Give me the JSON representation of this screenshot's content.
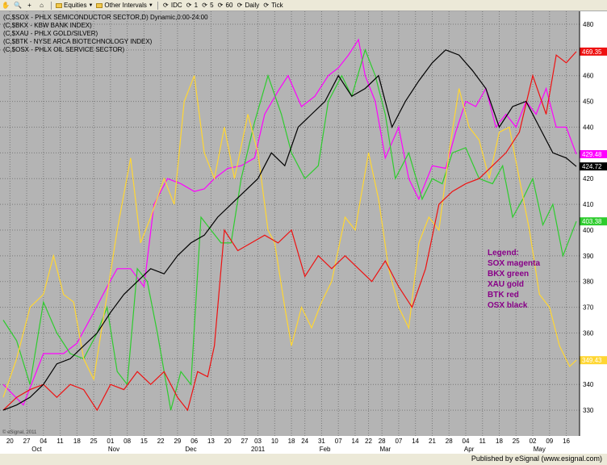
{
  "toolbar": {
    "items": [
      {
        "label": "",
        "icon": "hand-icon",
        "glyph": "✋"
      },
      {
        "label": "",
        "icon": "zoom-icon",
        "glyph": "🔍"
      },
      {
        "label": "",
        "icon": "crosshair-icon",
        "glyph": "+"
      },
      {
        "label": "",
        "icon": "home-icon",
        "glyph": "⌂"
      },
      {
        "label": "Equities",
        "icon": "folder-icon",
        "glyph": ""
      },
      {
        "label": "Other Intervals",
        "icon": "folder-icon",
        "glyph": ""
      },
      {
        "label": "IDC",
        "icon": "interval-icon",
        "glyph": "⟳"
      },
      {
        "label": "1",
        "icon": "interval-icon",
        "glyph": "⟳"
      },
      {
        "label": "5",
        "icon": "interval-icon",
        "glyph": "⟳"
      },
      {
        "label": "60",
        "icon": "interval-icon",
        "glyph": "⟳"
      },
      {
        "label": "Daily",
        "icon": "interval-icon",
        "glyph": "⟳"
      },
      {
        "label": "Tick",
        "icon": "interval-icon",
        "glyph": "⟳"
      }
    ]
  },
  "footer": {
    "text": "Published by eSignal (www.esignal.com)"
  },
  "watermark": "© eSignal, 2011",
  "colors": {
    "plot_bg": "#b4b4b4",
    "grid": "#7a7a7a",
    "sox": "#ff00ff",
    "bkx": "#2ecc2e",
    "xau": "#ffd633",
    "btk": "#ee1111",
    "osx": "#000000",
    "legend_text": "#880088"
  },
  "chart_data": {
    "type": "line",
    "header_lines": [
      "(C,$SOX - PHLX SEMICONDUCTOR SECTOR,D) Dynamic,0:00-24:00",
      "(C,$BKX - KBW BANK INDEX)",
      "(C,$XAU - PHLX GOLD/SILVER)",
      "(C,$BTK - NYSE ARCA BIOTECHNOLOGY INDEX)",
      "(C,$OSX - PHLX OIL SERVICE SECTOR)"
    ],
    "ylim": [
      320,
      485
    ],
    "yticks": [
      330,
      340,
      350,
      360,
      370,
      380,
      390,
      400,
      410,
      420,
      430,
      440,
      450,
      460,
      470,
      480
    ],
    "n_bars": 147,
    "xticks": [
      {
        "label": "20",
        "bar": 2
      },
      {
        "label": "27",
        "bar": 7
      },
      {
        "label": "04",
        "bar": 12
      },
      {
        "label": "11",
        "bar": 17
      },
      {
        "label": "18",
        "bar": 22
      },
      {
        "label": "25",
        "bar": 27
      },
      {
        "label": "01",
        "bar": 32
      },
      {
        "label": "08",
        "bar": 37
      },
      {
        "label": "15",
        "bar": 42
      },
      {
        "label": "22",
        "bar": 47
      },
      {
        "label": "29",
        "bar": 52
      },
      {
        "label": "06",
        "bar": 57
      },
      {
        "label": "13",
        "bar": 62
      },
      {
        "label": "20",
        "bar": 67
      },
      {
        "label": "27",
        "bar": 72
      },
      {
        "label": "03",
        "bar": 76
      },
      {
        "label": "10",
        "bar": 81
      },
      {
        "label": "18",
        "bar": 86
      },
      {
        "label": "24",
        "bar": 90
      },
      {
        "label": "31",
        "bar": 95
      },
      {
        "label": "07",
        "bar": 100
      },
      {
        "label": "14",
        "bar": 105
      },
      {
        "label": "22",
        "bar": 109
      },
      {
        "label": "28",
        "bar": 113
      },
      {
        "label": "07",
        "bar": 118
      },
      {
        "label": "14",
        "bar": 123
      },
      {
        "label": "21",
        "bar": 128
      },
      {
        "label": "28",
        "bar": 133
      },
      {
        "label": "04",
        "bar": 138
      },
      {
        "label": "11",
        "bar": 143
      },
      {
        "label": "18",
        "bar": 148
      },
      {
        "label": "25",
        "bar": 153
      },
      {
        "label": "02",
        "bar": 158
      },
      {
        "label": "09",
        "bar": 163
      },
      {
        "label": "16",
        "bar": 168
      }
    ],
    "months": [
      {
        "label": "Oct",
        "bar": 10
      },
      {
        "label": "Nov",
        "bar": 33
      },
      {
        "label": "Dec",
        "bar": 56
      },
      {
        "label": "2011",
        "bar": 76
      },
      {
        "label": "Feb",
        "bar": 96
      },
      {
        "label": "Mar",
        "bar": 114
      },
      {
        "label": "Apr",
        "bar": 139
      },
      {
        "label": "May",
        "bar": 160
      }
    ],
    "series": [
      {
        "name": "SOX magenta",
        "key": "sox",
        "last": "429.48",
        "labelValue": 429.48,
        "points": [
          [
            0,
            340
          ],
          [
            6,
            332
          ],
          [
            12,
            352
          ],
          [
            18,
            352
          ],
          [
            22,
            356
          ],
          [
            27,
            368
          ],
          [
            31,
            378
          ],
          [
            34,
            385
          ],
          [
            38,
            385
          ],
          [
            42,
            378
          ],
          [
            45,
            410
          ],
          [
            49,
            420
          ],
          [
            53,
            418
          ],
          [
            57,
            415
          ],
          [
            60,
            416
          ],
          [
            63,
            420
          ],
          [
            67,
            424
          ],
          [
            71,
            425
          ],
          [
            75,
            428
          ],
          [
            78,
            445
          ],
          [
            82,
            454
          ],
          [
            85,
            460
          ],
          [
            89,
            448
          ],
          [
            93,
            452
          ],
          [
            97,
            460
          ],
          [
            100,
            463
          ],
          [
            103,
            468
          ],
          [
            106,
            474
          ],
          [
            108,
            460
          ],
          [
            111,
            450
          ],
          [
            114,
            428
          ],
          [
            118,
            440
          ],
          [
            121,
            420
          ],
          [
            124,
            412
          ],
          [
            128,
            425
          ],
          [
            132,
            424
          ],
          [
            135,
            438
          ],
          [
            138,
            450
          ],
          [
            141,
            448
          ],
          [
            144,
            455
          ],
          [
            147,
            440
          ],
          [
            150,
            445
          ],
          [
            153,
            440
          ],
          [
            156,
            450
          ],
          [
            159,
            445
          ],
          [
            162,
            455
          ],
          [
            165,
            440
          ],
          [
            168,
            440
          ],
          [
            171,
            429.48
          ]
        ]
      },
      {
        "name": "BKX green",
        "key": "bkx",
        "last": "403.38",
        "labelValue": 403.38,
        "points": [
          [
            0,
            365
          ],
          [
            4,
            357
          ],
          [
            8,
            340
          ],
          [
            12,
            372
          ],
          [
            16,
            360
          ],
          [
            20,
            352
          ],
          [
            24,
            350
          ],
          [
            28,
            360
          ],
          [
            31,
            370
          ],
          [
            34,
            345
          ],
          [
            37,
            340
          ],
          [
            40,
            385
          ],
          [
            43,
            380
          ],
          [
            46,
            360
          ],
          [
            50,
            330
          ],
          [
            53,
            345
          ],
          [
            56,
            340
          ],
          [
            59,
            405
          ],
          [
            62,
            400
          ],
          [
            65,
            395
          ],
          [
            68,
            395
          ],
          [
            71,
            420
          ],
          [
            75,
            442
          ],
          [
            79,
            460
          ],
          [
            83,
            445
          ],
          [
            86,
            430
          ],
          [
            90,
            420
          ],
          [
            94,
            425
          ],
          [
            97,
            450
          ],
          [
            101,
            460
          ],
          [
            104,
            452
          ],
          [
            108,
            470
          ],
          [
            111,
            460
          ],
          [
            114,
            445
          ],
          [
            117,
            420
          ],
          [
            121,
            430
          ],
          [
            125,
            412
          ],
          [
            128,
            420
          ],
          [
            131,
            418
          ],
          [
            134,
            430
          ],
          [
            138,
            432
          ],
          [
            142,
            420
          ],
          [
            146,
            418
          ],
          [
            149,
            425
          ],
          [
            152,
            405
          ],
          [
            155,
            412
          ],
          [
            158,
            420
          ],
          [
            161,
            402
          ],
          [
            164,
            410
          ],
          [
            167,
            390
          ],
          [
            171,
            403.38
          ]
        ]
      },
      {
        "name": "XAU gold",
        "key": "xau",
        "last": "349.43",
        "labelValue": 349.43,
        "points": [
          [
            0,
            335
          ],
          [
            4,
            350
          ],
          [
            8,
            370
          ],
          [
            12,
            375
          ],
          [
            15,
            390
          ],
          [
            18,
            375
          ],
          [
            21,
            372
          ],
          [
            24,
            350
          ],
          [
            27,
            342
          ],
          [
            31,
            375
          ],
          [
            34,
            400
          ],
          [
            38,
            428
          ],
          [
            41,
            395
          ],
          [
            44,
            405
          ],
          [
            48,
            420
          ],
          [
            51,
            410
          ],
          [
            54,
            450
          ],
          [
            57,
            460
          ],
          [
            60,
            430
          ],
          [
            63,
            420
          ],
          [
            66,
            440
          ],
          [
            69,
            420
          ],
          [
            73,
            445
          ],
          [
            76,
            430
          ],
          [
            79,
            400
          ],
          [
            81,
            395
          ],
          [
            84,
            370
          ],
          [
            86,
            355
          ],
          [
            89,
            370
          ],
          [
            92,
            362
          ],
          [
            95,
            372
          ],
          [
            98,
            380
          ],
          [
            102,
            405
          ],
          [
            105,
            400
          ],
          [
            109,
            430
          ],
          [
            112,
            412
          ],
          [
            115,
            385
          ],
          [
            118,
            370
          ],
          [
            121,
            362
          ],
          [
            124,
            395
          ],
          [
            127,
            405
          ],
          [
            130,
            400
          ],
          [
            133,
            430
          ],
          [
            136,
            455
          ],
          [
            139,
            440
          ],
          [
            142,
            435
          ],
          [
            145,
            420
          ],
          [
            148,
            438
          ],
          [
            151,
            440
          ],
          [
            154,
            420
          ],
          [
            157,
            400
          ],
          [
            160,
            375
          ],
          [
            163,
            370
          ],
          [
            166,
            355
          ],
          [
            169,
            347
          ],
          [
            171,
            349.43
          ]
        ]
      },
      {
        "name": "BTK red",
        "key": "btk",
        "last": "469.35",
        "labelValue": 469.35,
        "points": [
          [
            0,
            330
          ],
          [
            4,
            335
          ],
          [
            8,
            338
          ],
          [
            12,
            340
          ],
          [
            16,
            335
          ],
          [
            20,
            340
          ],
          [
            24,
            338
          ],
          [
            28,
            330
          ],
          [
            32,
            340
          ],
          [
            36,
            338
          ],
          [
            40,
            345
          ],
          [
            44,
            340
          ],
          [
            48,
            345
          ],
          [
            52,
            335
          ],
          [
            55,
            330
          ],
          [
            58,
            345
          ],
          [
            61,
            343
          ],
          [
            63,
            355
          ],
          [
            66,
            400
          ],
          [
            70,
            392
          ],
          [
            74,
            395
          ],
          [
            78,
            398
          ],
          [
            82,
            395
          ],
          [
            86,
            400
          ],
          [
            90,
            382
          ],
          [
            94,
            390
          ],
          [
            98,
            385
          ],
          [
            102,
            390
          ],
          [
            106,
            385
          ],
          [
            110,
            380
          ],
          [
            114,
            388
          ],
          [
            118,
            378
          ],
          [
            122,
            370
          ],
          [
            126,
            385
          ],
          [
            130,
            410
          ],
          [
            134,
            415
          ],
          [
            138,
            418
          ],
          [
            142,
            420
          ],
          [
            146,
            425
          ],
          [
            150,
            430
          ],
          [
            154,
            438
          ],
          [
            158,
            460
          ],
          [
            162,
            445
          ],
          [
            165,
            468
          ],
          [
            168,
            465
          ],
          [
            171,
            469.35
          ]
        ]
      },
      {
        "name": "OSX black",
        "key": "osx",
        "last": "424.72",
        "labelValue": 424.72,
        "points": [
          [
            0,
            330
          ],
          [
            4,
            332
          ],
          [
            8,
            335
          ],
          [
            12,
            340
          ],
          [
            16,
            348
          ],
          [
            20,
            350
          ],
          [
            24,
            355
          ],
          [
            28,
            360
          ],
          [
            32,
            368
          ],
          [
            36,
            375
          ],
          [
            40,
            380
          ],
          [
            44,
            385
          ],
          [
            48,
            383
          ],
          [
            52,
            390
          ],
          [
            56,
            395
          ],
          [
            60,
            398
          ],
          [
            64,
            405
          ],
          [
            68,
            410
          ],
          [
            72,
            415
          ],
          [
            76,
            420
          ],
          [
            80,
            430
          ],
          [
            84,
            425
          ],
          [
            88,
            440
          ],
          [
            92,
            445
          ],
          [
            96,
            450
          ],
          [
            100,
            460
          ],
          [
            104,
            452
          ],
          [
            108,
            455
          ],
          [
            112,
            460
          ],
          [
            116,
            440
          ],
          [
            120,
            450
          ],
          [
            124,
            458
          ],
          [
            128,
            465
          ],
          [
            132,
            470
          ],
          [
            136,
            468
          ],
          [
            140,
            462
          ],
          [
            144,
            455
          ],
          [
            148,
            440
          ],
          [
            152,
            448
          ],
          [
            156,
            450
          ],
          [
            160,
            440
          ],
          [
            164,
            430
          ],
          [
            168,
            428
          ],
          [
            171,
            424.72
          ]
        ]
      }
    ],
    "legend": [
      "Legend:",
      "SOX magenta",
      "BKX green",
      "XAU gold",
      "BTK red",
      "OSX black"
    ],
    "grid": true
  }
}
